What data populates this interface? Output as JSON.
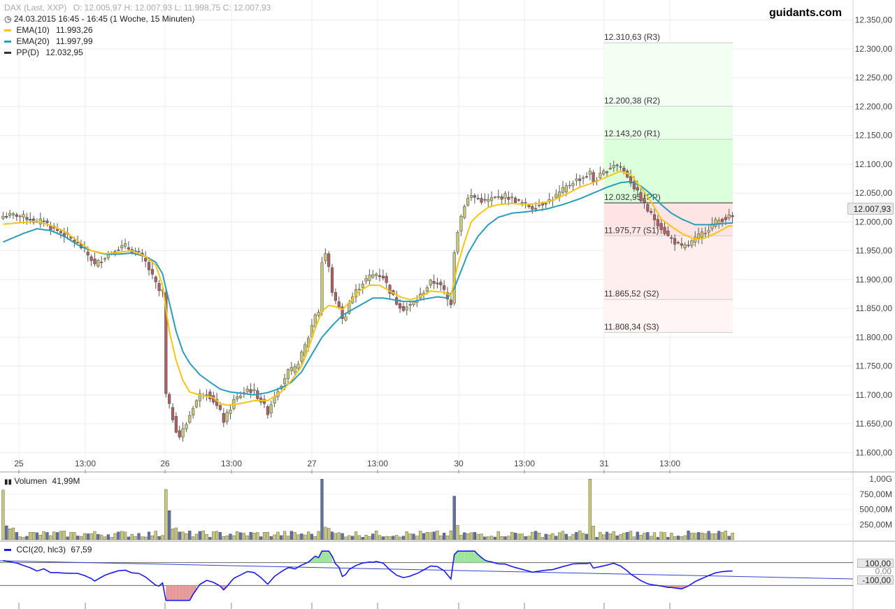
{
  "header": {
    "instrument": "DAX (Last, XXP)",
    "ohlc": "O: 12.005,97   H: 12.007,93   L: 11.998,75   C: 12.007,93",
    "datetime": "24.03.2015 16:45 - 16:45 (1 Woche, 15 Minuten)",
    "ema10_label": "EMA(10)",
    "ema10_value": "11.993,26",
    "ema20_label": "EMA(20)",
    "ema20_value": "11.997,99",
    "pp_label": "PP(D)",
    "pp_value": "12.032,95",
    "brand": "guidants.com"
  },
  "colors": {
    "ema10": "#f5c518",
    "ema20": "#2a9dbb",
    "pp": "#333333",
    "up_candle": "#c8c878",
    "down_candle": "#b06060",
    "volume_bar": "#c8c878",
    "volume_bar_alt": "#6070a0",
    "cci_line": "#1a1aee",
    "cci_pos_fill": "#9ee49e",
    "cci_neg_fill": "#e69a9a",
    "zone_green": "#dcffdc",
    "zone_red": "#ffe4e4"
  },
  "price_tag": "12.007,93",
  "volume_panel": {
    "label": "Volumen",
    "value": "41,99M",
    "ticks": [
      "1,00G",
      "750,00M",
      "500,00M",
      "250,00M"
    ]
  },
  "cci_panel": {
    "label": "CCI(20, hlc3)",
    "value": "67,59",
    "tag_top": "100,00",
    "tag_mid": "0,00",
    "tag_bottom": "-100,00"
  },
  "chart_data": {
    "type": "candlestick",
    "title": "DAX (Last, XXP)",
    "y_axis_ticks": [
      "12.350,00",
      "12.300,00",
      "12.250,00",
      "12.200,00",
      "12.150,00",
      "12.100,00",
      "12.050,00",
      "12.000,00",
      "11.950,00",
      "11.900,00",
      "11.850,00",
      "11.800,00",
      "11.750,00",
      "11.700,00",
      "11.650,00",
      "11.600,00"
    ],
    "ylim": [
      11570,
      12375
    ],
    "x_labels": [
      "25",
      "13:00",
      "26",
      "13:00",
      "27",
      "13:00",
      "30",
      "13:00",
      "31",
      "13:00"
    ],
    "pivots": [
      {
        "name": "R3",
        "value": 12310.63,
        "label": "12.310,63 (R3)"
      },
      {
        "name": "R2",
        "value": 12200.38,
        "label": "12.200,38 (R2)"
      },
      {
        "name": "R1",
        "value": 12143.2,
        "label": "12.143,20 (R1)"
      },
      {
        "name": "PP",
        "value": 12032.95,
        "label": "12.032,95 (PP)"
      },
      {
        "name": "S1",
        "value": 11975.77,
        "label": "11.975,77 (S1)"
      },
      {
        "name": "S2",
        "value": 11865.52,
        "label": "11.865,52 (S2)"
      },
      {
        "name": "S3",
        "value": 11808.34,
        "label": "11.808,34 (S3)"
      }
    ],
    "close_path": [
      [
        0,
        12010
      ],
      [
        4,
        12012
      ],
      [
        8,
        12005
      ],
      [
        10,
        11998
      ],
      [
        12,
        12004
      ],
      [
        14,
        11990
      ],
      [
        16,
        11985
      ],
      [
        18,
        11978
      ],
      [
        20,
        11970
      ],
      [
        22,
        11962
      ],
      [
        24,
        11950
      ],
      [
        26,
        11935
      ],
      [
        27,
        11925
      ],
      [
        28,
        11930
      ],
      [
        30,
        11940
      ],
      [
        32,
        11948
      ],
      [
        34,
        11955
      ],
      [
        36,
        11958
      ],
      [
        38,
        11950
      ],
      [
        40,
        11945
      ],
      [
        42,
        11930
      ],
      [
        44,
        11905
      ],
      [
        46,
        11880
      ],
      [
        47,
        11880
      ],
      [
        48,
        11700
      ],
      [
        49,
        11680
      ],
      [
        50,
        11660
      ],
      [
        51,
        11640
      ],
      [
        52,
        11628
      ],
      [
        54,
        11650
      ],
      [
        56,
        11680
      ],
      [
        58,
        11700
      ],
      [
        60,
        11705
      ],
      [
        62,
        11690
      ],
      [
        64,
        11670
      ],
      [
        65,
        11655
      ],
      [
        66,
        11665
      ],
      [
        68,
        11690
      ],
      [
        70,
        11700
      ],
      [
        72,
        11710
      ],
      [
        74,
        11705
      ],
      [
        76,
        11690
      ],
      [
        78,
        11670
      ],
      [
        80,
        11700
      ],
      [
        82,
        11720
      ],
      [
        84,
        11740
      ],
      [
        86,
        11745
      ],
      [
        88,
        11770
      ],
      [
        90,
        11800
      ],
      [
        92,
        11840
      ],
      [
        93,
        11845
      ],
      [
        94,
        11930
      ],
      [
        95,
        11945
      ],
      [
        96,
        11920
      ],
      [
        97,
        11880
      ],
      [
        98,
        11860
      ],
      [
        99,
        11855
      ],
      [
        100,
        11830
      ],
      [
        101,
        11840
      ],
      [
        102,
        11860
      ],
      [
        104,
        11880
      ],
      [
        106,
        11895
      ],
      [
        108,
        11905
      ],
      [
        110,
        11910
      ],
      [
        112,
        11905
      ],
      [
        114,
        11880
      ],
      [
        116,
        11860
      ],
      [
        118,
        11850
      ],
      [
        120,
        11855
      ],
      [
        122,
        11865
      ],
      [
        124,
        11880
      ],
      [
        126,
        11895
      ],
      [
        128,
        11895
      ],
      [
        130,
        11880
      ],
      [
        131,
        11865
      ],
      [
        132,
        11860
      ],
      [
        133,
        11950
      ],
      [
        134,
        11985
      ],
      [
        135,
        12010
      ],
      [
        136,
        12030
      ],
      [
        137,
        12040
      ],
      [
        138,
        12045
      ],
      [
        140,
        12040
      ],
      [
        142,
        12035
      ],
      [
        144,
        12040
      ],
      [
        146,
        12042
      ],
      [
        148,
        12045
      ],
      [
        150,
        12040
      ],
      [
        152,
        12035
      ],
      [
        154,
        12030
      ],
      [
        156,
        12025
      ],
      [
        158,
        12030
      ],
      [
        160,
        12035
      ],
      [
        162,
        12040
      ],
      [
        164,
        12050
      ],
      [
        166,
        12060
      ],
      [
        168,
        12070
      ],
      [
        170,
        12075
      ],
      [
        172,
        12080
      ],
      [
        173,
        12085
      ],
      [
        174,
        12070
      ],
      [
        176,
        12080
      ],
      [
        178,
        12090
      ],
      [
        180,
        12100
      ],
      [
        182,
        12095
      ],
      [
        184,
        12080
      ],
      [
        186,
        12060
      ],
      [
        188,
        12040
      ],
      [
        190,
        12020
      ],
      [
        192,
        12005
      ],
      [
        194,
        11990
      ],
      [
        196,
        11975
      ],
      [
        198,
        11965
      ],
      [
        200,
        11955
      ],
      [
        202,
        11960
      ],
      [
        204,
        11970
      ],
      [
        206,
        11980
      ],
      [
        208,
        11990
      ],
      [
        210,
        12000
      ],
      [
        212,
        12005
      ],
      [
        214,
        12008
      ]
    ],
    "ema10_path": [
      [
        0,
        11996
      ],
      [
        10,
        12001
      ],
      [
        14,
        11994
      ],
      [
        18,
        11984
      ],
      [
        22,
        11967
      ],
      [
        26,
        11950
      ],
      [
        30,
        11945
      ],
      [
        34,
        11947
      ],
      [
        38,
        11950
      ],
      [
        42,
        11940
      ],
      [
        45,
        11925
      ],
      [
        47,
        11890
      ],
      [
        49,
        11810
      ],
      [
        51,
        11760
      ],
      [
        53,
        11725
      ],
      [
        55,
        11705
      ],
      [
        58,
        11700
      ],
      [
        62,
        11695
      ],
      [
        64,
        11685
      ],
      [
        66,
        11682
      ],
      [
        70,
        11685
      ],
      [
        74,
        11690
      ],
      [
        78,
        11690
      ],
      [
        82,
        11705
      ],
      [
        85,
        11725
      ],
      [
        88,
        11750
      ],
      [
        90,
        11780
      ],
      [
        92,
        11815
      ],
      [
        94,
        11845
      ],
      [
        96,
        11855
      ],
      [
        98,
        11853
      ],
      [
        100,
        11848
      ],
      [
        102,
        11860
      ],
      [
        105,
        11880
      ],
      [
        108,
        11890
      ],
      [
        111,
        11890
      ],
      [
        114,
        11880
      ],
      [
        117,
        11870
      ],
      [
        120,
        11865
      ],
      [
        123,
        11870
      ],
      [
        126,
        11880
      ],
      [
        130,
        11878
      ],
      [
        132,
        11872
      ],
      [
        134,
        11925
      ],
      [
        136,
        11965
      ],
      [
        138,
        12000
      ],
      [
        140,
        12012
      ],
      [
        143,
        12025
      ],
      [
        146,
        12030
      ],
      [
        150,
        12032
      ],
      [
        154,
        12030
      ],
      [
        158,
        12032
      ],
      [
        162,
        12037
      ],
      [
        166,
        12048
      ],
      [
        170,
        12060
      ],
      [
        174,
        12068
      ],
      [
        178,
        12078
      ],
      [
        182,
        12088
      ],
      [
        185,
        12082
      ],
      [
        188,
        12060
      ],
      [
        191,
        12035
      ],
      [
        194,
        12005
      ],
      [
        197,
        11992
      ],
      [
        200,
        11980
      ],
      [
        203,
        11972
      ],
      [
        206,
        11970
      ],
      [
        210,
        11980
      ],
      [
        214,
        11993
      ]
    ],
    "ema20_path": [
      [
        0,
        11965
      ],
      [
        6,
        11980
      ],
      [
        10,
        11988
      ],
      [
        14,
        11985
      ],
      [
        18,
        11975
      ],
      [
        22,
        11960
      ],
      [
        26,
        11950
      ],
      [
        30,
        11944
      ],
      [
        34,
        11944
      ],
      [
        38,
        11946
      ],
      [
        42,
        11940
      ],
      [
        45,
        11930
      ],
      [
        47,
        11910
      ],
      [
        49,
        11860
      ],
      [
        51,
        11810
      ],
      [
        53,
        11775
      ],
      [
        55,
        11755
      ],
      [
        58,
        11735
      ],
      [
        61,
        11722
      ],
      [
        64,
        11710
      ],
      [
        67,
        11705
      ],
      [
        70,
        11703
      ],
      [
        74,
        11700
      ],
      [
        78,
        11704
      ],
      [
        82,
        11712
      ],
      [
        85,
        11722
      ],
      [
        88,
        11740
      ],
      [
        91,
        11770
      ],
      [
        94,
        11800
      ],
      [
        97,
        11820
      ],
      [
        100,
        11838
      ],
      [
        103,
        11848
      ],
      [
        106,
        11858
      ],
      [
        109,
        11868
      ],
      [
        112,
        11868
      ],
      [
        115,
        11865
      ],
      [
        118,
        11862
      ],
      [
        121,
        11862
      ],
      [
        124,
        11866
      ],
      [
        128,
        11870
      ],
      [
        131,
        11868
      ],
      [
        133,
        11885
      ],
      [
        135,
        11915
      ],
      [
        137,
        11945
      ],
      [
        140,
        11975
      ],
      [
        143,
        11995
      ],
      [
        146,
        12008
      ],
      [
        150,
        12015
      ],
      [
        155,
        12018
      ],
      [
        160,
        12022
      ],
      [
        165,
        12030
      ],
      [
        170,
        12040
      ],
      [
        174,
        12050
      ],
      [
        178,
        12060
      ],
      [
        182,
        12068
      ],
      [
        185,
        12070
      ],
      [
        188,
        12062
      ],
      [
        191,
        12048
      ],
      [
        194,
        12030
      ],
      [
        197,
        12015
      ],
      [
        200,
        12005
      ],
      [
        204,
        11995
      ],
      [
        208,
        11995
      ],
      [
        212,
        11997
      ],
      [
        214,
        11998
      ]
    ],
    "volume_ticks_values": [
      1000,
      750,
      500,
      250
    ],
    "cci_levels": [
      100,
      0,
      -100
    ]
  }
}
